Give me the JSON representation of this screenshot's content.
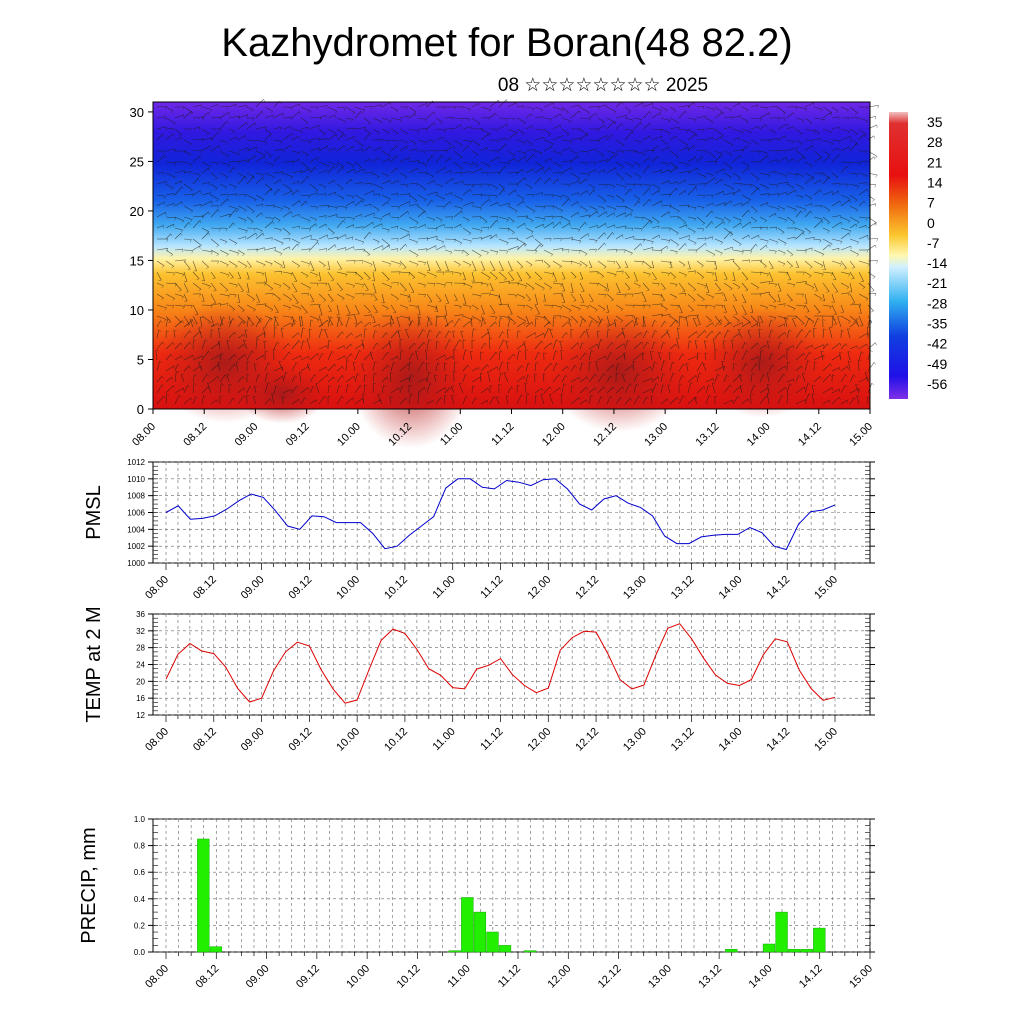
{
  "header": {
    "title": "Kazhydromet for Boran(48 82.2)",
    "subtitle": "08 ☆☆☆☆☆☆☆☆ 2025"
  },
  "chart_data": [
    {
      "type": "heatmap",
      "panel": "vertical-section",
      "x_ticks": [
        "08.00",
        "08.12",
        "09.00",
        "09.12",
        "10.00",
        "10.12",
        "11.00",
        "11.12",
        "12.00",
        "12.12",
        "13.00",
        "13.12",
        "14.00",
        "14.12",
        "15.00"
      ],
      "y_ticks": [
        "0",
        "5",
        "10",
        "15",
        "20",
        "25",
        "30"
      ],
      "ylim": [
        0,
        31
      ],
      "colorbar_labels": [
        "35",
        "28",
        "21",
        "14",
        "7",
        "0",
        "-7",
        "-14",
        "-21",
        "-28",
        "-35",
        "-42",
        "-49",
        "-56"
      ],
      "colors": {
        "warm": "#e01010",
        "hot": "#c02020",
        "mid": "#fff0a0",
        "cold": "#1030e0",
        "coldest": "#7020e0"
      }
    },
    {
      "type": "line",
      "panel": "pmsl",
      "ylabel": "PMSL",
      "ylim": [
        1000,
        1012
      ],
      "y_ticks": [
        "1000",
        "1002",
        "1004",
        "1006",
        "1008",
        "1010",
        "1012"
      ],
      "x_ticks": [
        "08.00",
        "08.12",
        "09.00",
        "09.12",
        "10.00",
        "10.12",
        "11.00",
        "11.12",
        "12.00",
        "12.12",
        "13.00",
        "13.12",
        "14.00",
        "14.12",
        "15.00"
      ],
      "color": "#0000cc",
      "values": [
        1006.0,
        1006.8,
        1005.2,
        1005.3,
        1005.6,
        1006.4,
        1007.4,
        1008.2,
        1007.8,
        1006.2,
        1004.4,
        1004.0,
        1005.6,
        1005.5,
        1004.8,
        1004.8,
        1004.8,
        1003.5,
        1001.7,
        1002.0,
        1003.3,
        1004.4,
        1005.5,
        1008.9,
        1010.0,
        1010.0,
        1009.0,
        1008.8,
        1009.8,
        1009.6,
        1009.2,
        1009.9,
        1010.0,
        1008.8,
        1007.0,
        1006.3,
        1007.6,
        1008.0,
        1007.1,
        1006.6,
        1005.6,
        1003.2,
        1002.3,
        1002.3,
        1003.1,
        1003.3,
        1003.4,
        1003.4,
        1004.2,
        1003.6,
        1002.0,
        1001.6,
        1004.6,
        1006.1,
        1006.3,
        1006.9
      ]
    },
    {
      "type": "line",
      "panel": "temp2m",
      "ylabel": "TEMP at 2 M",
      "ylim": [
        12,
        36
      ],
      "y_ticks": [
        "12",
        "16",
        "20",
        "24",
        "28",
        "32",
        "36"
      ],
      "x_ticks": [
        "08.00",
        "08.12",
        "09.00",
        "09.12",
        "10.00",
        "10.12",
        "11.00",
        "11.12",
        "12.00",
        "12.12",
        "13.00",
        "13.12",
        "14.00",
        "14.12",
        "15.00"
      ],
      "color": "#dd0000",
      "values": [
        20.5,
        26.4,
        29.0,
        27.2,
        26.6,
        23.4,
        18.3,
        15.1,
        16.0,
        22.5,
        27.0,
        29.3,
        28.4,
        22.7,
        18.1,
        14.8,
        15.6,
        22.8,
        29.7,
        32.4,
        31.4,
        27.6,
        23.0,
        21.4,
        18.5,
        18.2,
        22.9,
        23.8,
        25.4,
        21.6,
        19.0,
        17.3,
        18.4,
        27.4,
        30.4,
        31.9,
        31.7,
        26.5,
        20.4,
        18.2,
        19.1,
        26.2,
        32.6,
        33.7,
        30.1,
        25.5,
        21.5,
        19.5,
        19.0,
        20.4,
        26.3,
        30.1,
        29.4,
        22.7,
        18.3,
        15.5,
        16.2
      ]
    },
    {
      "type": "bar",
      "panel": "precip",
      "ylabel": "PRECIP, mm",
      "ylim": [
        0,
        1.0
      ],
      "y_ticks": [
        "0.0",
        "0.2",
        "0.4",
        "0.6",
        "0.8",
        "1.0"
      ],
      "x_ticks": [
        "08.00",
        "08.12",
        "09.00",
        "09.12",
        "10.00",
        "10.12",
        "11.00",
        "11.12",
        "12.00",
        "12.12",
        "13.00",
        "13.12",
        "14.00",
        "14.12",
        "15.00"
      ],
      "color": "#22ee00",
      "bars": [
        {
          "step": 3,
          "value": 0.85
        },
        {
          "step": 4,
          "value": 0.04
        },
        {
          "step": 23,
          "value": 0.01
        },
        {
          "step": 24,
          "value": 0.41
        },
        {
          "step": 25,
          "value": 0.3
        },
        {
          "step": 26,
          "value": 0.15
        },
        {
          "step": 27,
          "value": 0.05
        },
        {
          "step": 29,
          "value": 0.01
        },
        {
          "step": 45,
          "value": 0.02
        },
        {
          "step": 48,
          "value": 0.06
        },
        {
          "step": 49,
          "value": 0.3
        },
        {
          "step": 50,
          "value": 0.02
        },
        {
          "step": 51,
          "value": 0.02
        },
        {
          "step": 52,
          "value": 0.18
        }
      ]
    }
  ]
}
